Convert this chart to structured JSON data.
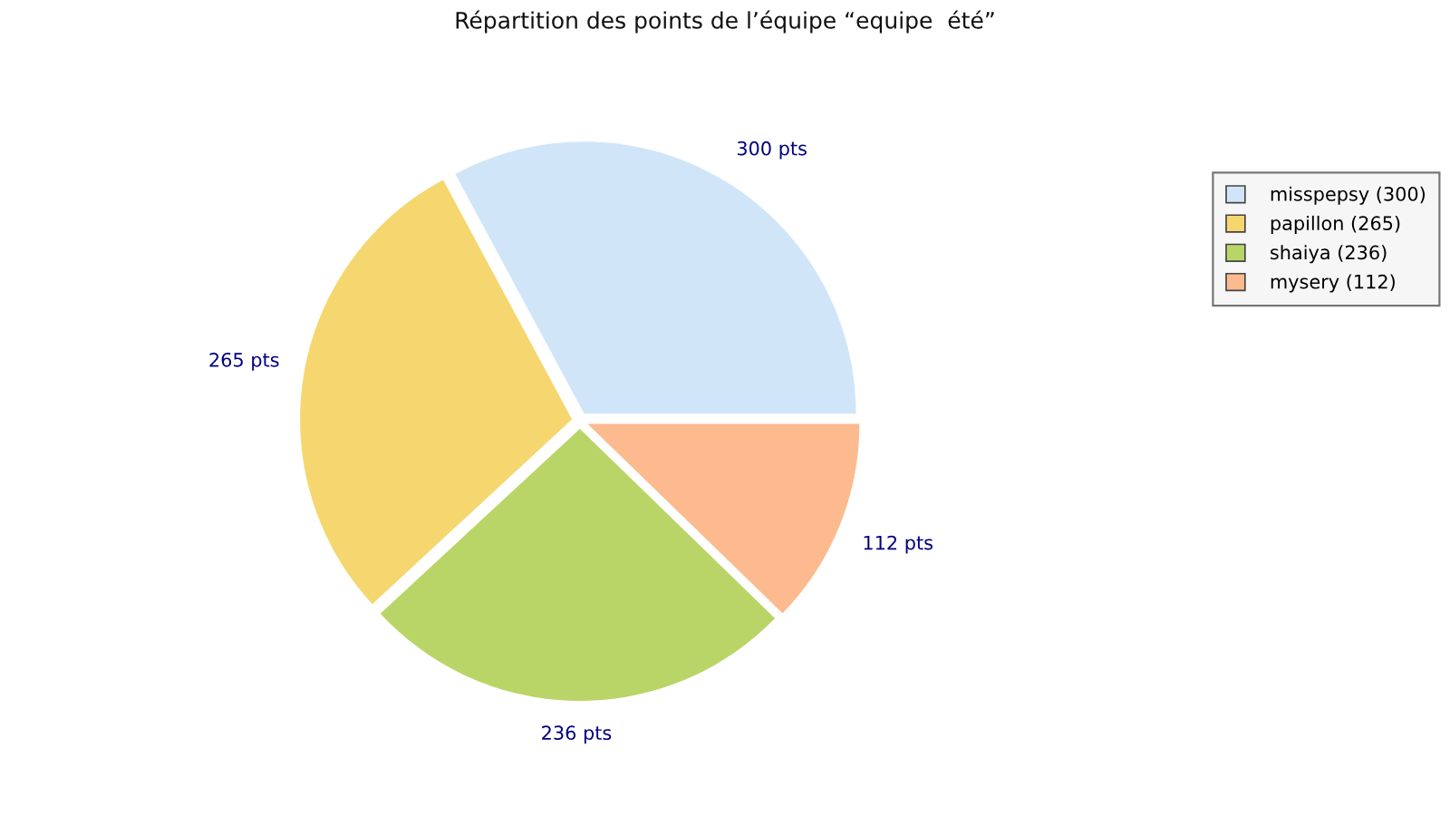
{
  "chart_data": {
    "type": "pie",
    "title": "Répartition des points de l’équipe “equipe  été”",
    "categories": [
      "misspepsy (300)",
      "papillon (265)",
      "shaiya (236)",
      "mysery (112)"
    ],
    "values": [
      300,
      265,
      236,
      112
    ],
    "colors": [
      "#d0e6f8",
      "#f6d66f",
      "#bad567",
      "#fdba8e"
    ],
    "value_labels": [
      "300 pts",
      "265 pts",
      "236 pts",
      "112 pts"
    ],
    "legend": "right"
  }
}
